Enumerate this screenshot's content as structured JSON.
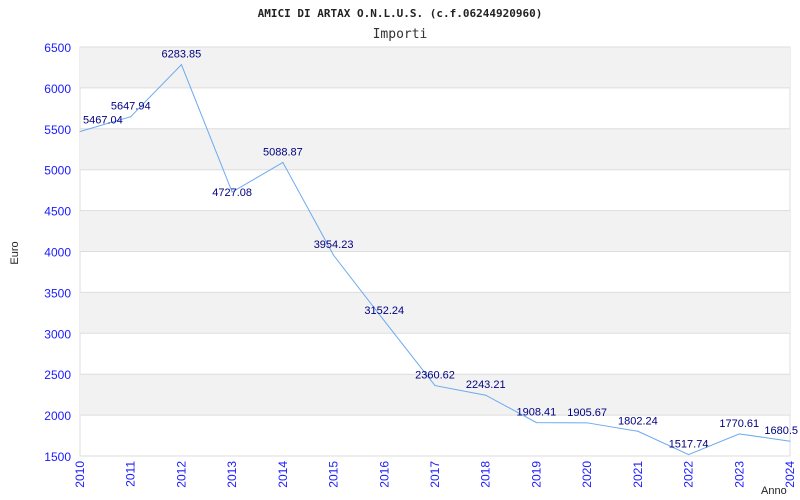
{
  "chart_data": {
    "type": "line",
    "title": "AMICI DI ARTAX O.N.L.U.S. (c.f.06244920960)",
    "subtitle": "Importi",
    "xlabel": "Anno",
    "ylabel": "Euro",
    "ylim": [
      1500,
      6500
    ],
    "yticks": [
      "1500",
      "2000",
      "2500",
      "3000",
      "3500",
      "4000",
      "4500",
      "5000",
      "5500",
      "6000",
      "6500"
    ],
    "categories": [
      "2010",
      "2011",
      "2012",
      "2013",
      "2014",
      "2015",
      "2016",
      "2017",
      "2018",
      "2019",
      "2020",
      "2021",
      "2022",
      "2023",
      "2024"
    ],
    "values": [
      5467.04,
      5647.94,
      6283.85,
      4727.08,
      5088.87,
      3954.23,
      3152.24,
      2360.62,
      2243.21,
      1908.41,
      1905.67,
      1802.24,
      1517.74,
      1770.61,
      1680.5
    ],
    "labels": [
      "5467.04",
      "5647.94",
      "6283.85",
      "4727.08",
      "5088.87",
      "3954.23",
      "3152.24",
      "2360.62",
      "2243.21",
      "1908.41",
      "1905.67",
      "1802.24",
      "1517.74",
      "1770.61",
      "1680.5"
    ],
    "grid": true,
    "colors": {
      "line": "#6aaaf0",
      "band": "#f2f2f2",
      "grid": "#dddddd"
    }
  }
}
